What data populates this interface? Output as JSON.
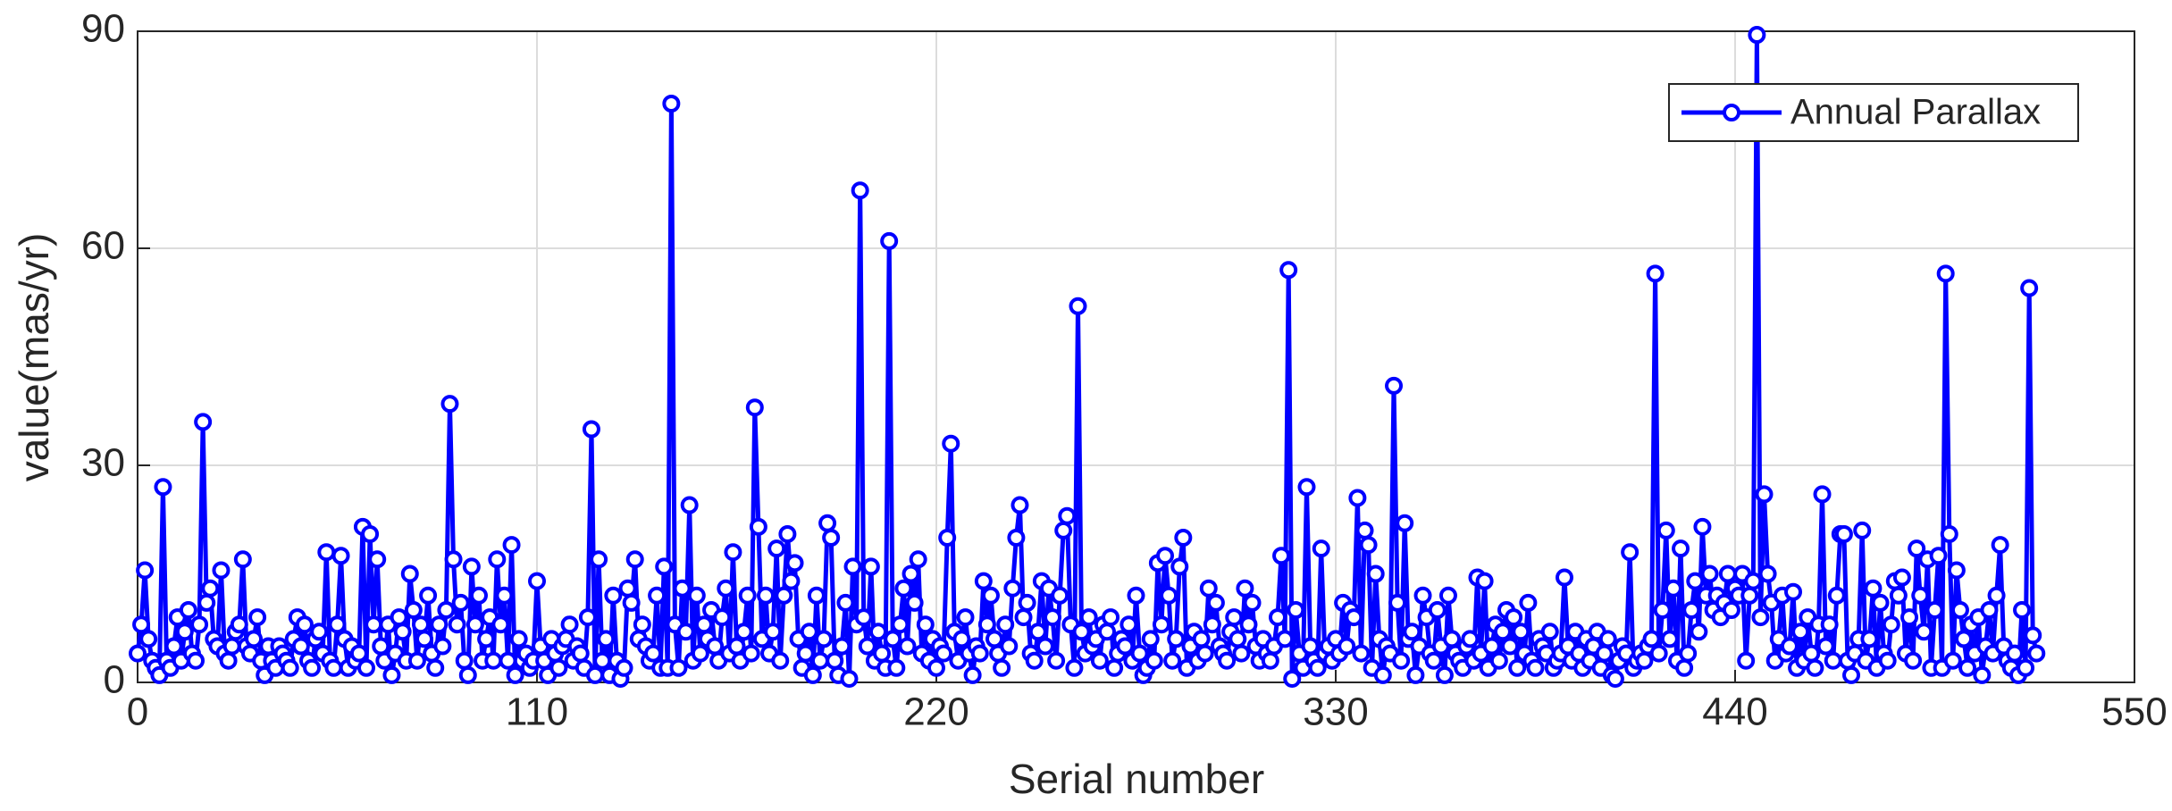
{
  "chart_data": {
    "type": "line",
    "xlabel": "Serial number",
    "ylabel": "value(mas/yr)",
    "xlim": [
      0,
      550
    ],
    "xticks": [
      0,
      110,
      220,
      330,
      440,
      550
    ],
    "ylim": [
      0,
      90
    ],
    "yticks": [
      0,
      30,
      60,
      90
    ],
    "grid": true,
    "legend": "upper right",
    "x": [
      0,
      1,
      2,
      3,
      4,
      5,
      6,
      7,
      8,
      9,
      10,
      11,
      12,
      13,
      14,
      15,
      16,
      17,
      18,
      19,
      20,
      21,
      22,
      23,
      24,
      25,
      26,
      27,
      28,
      29,
      30,
      31,
      32,
      33,
      34,
      35,
      36,
      37,
      38,
      39,
      40,
      41,
      42,
      43,
      44,
      45,
      46,
      47,
      48,
      49,
      50,
      51,
      52,
      53,
      54,
      55,
      56,
      57,
      58,
      59,
      60,
      61,
      62,
      63,
      64,
      65,
      66,
      67,
      68,
      69,
      70,
      71,
      72,
      73,
      74,
      75,
      76,
      77,
      78,
      79,
      80,
      81,
      82,
      83,
      84,
      85,
      86,
      87,
      88,
      89,
      90,
      91,
      92,
      93,
      94,
      95,
      96,
      97,
      98,
      99,
      100,
      101,
      102,
      103,
      104,
      105,
      106,
      107,
      108,
      109,
      110,
      111,
      112,
      113,
      114,
      115,
      116,
      117,
      118,
      119,
      120,
      121,
      122,
      123,
      124,
      125,
      126,
      127,
      128,
      129,
      130,
      131,
      132,
      133,
      134,
      135,
      136,
      137,
      138,
      139,
      140,
      141,
      142,
      143,
      144,
      145,
      146,
      147,
      148,
      149,
      150,
      151,
      152,
      153,
      154,
      155,
      156,
      157,
      158,
      159,
      160,
      161,
      162,
      163,
      164,
      165,
      166,
      167,
      168,
      169,
      170,
      171,
      172,
      173,
      174,
      175,
      176,
      177,
      178,
      179,
      180,
      181,
      182,
      183,
      184,
      185,
      186,
      187,
      188,
      189,
      190,
      191,
      192,
      193,
      194,
      195,
      196,
      197,
      198,
      199,
      200,
      201,
      202,
      203,
      204,
      205,
      206,
      207,
      208,
      209,
      210,
      211,
      212,
      213,
      214,
      215,
      216,
      217,
      218,
      219,
      220,
      221,
      222,
      223,
      224,
      225,
      226,
      227,
      228,
      229,
      230,
      231,
      232,
      233,
      234,
      235,
      236,
      237,
      238,
      239,
      240,
      241,
      242,
      243,
      244,
      245,
      246,
      247,
      248,
      249,
      250,
      251,
      252,
      253,
      254,
      255,
      256,
      257,
      258,
      259,
      260,
      261,
      262,
      263,
      264,
      265,
      266,
      267,
      268,
      269,
      270,
      271,
      272,
      273,
      274,
      275,
      276,
      277,
      278,
      279,
      280,
      281,
      282,
      283,
      284,
      285,
      286,
      287,
      288,
      289,
      290,
      291,
      292,
      293,
      294,
      295,
      296,
      297,
      298,
      299,
      300,
      301,
      302,
      303,
      304,
      305,
      306,
      307,
      308,
      309,
      310,
      311,
      312,
      313,
      314,
      315,
      316,
      317,
      318,
      319,
      320,
      321,
      322,
      323,
      324,
      325,
      326,
      327,
      328,
      329,
      330,
      331,
      332,
      333,
      334,
      335,
      336,
      337,
      338,
      339,
      340,
      341,
      342,
      343,
      344,
      345,
      346,
      347,
      348,
      349,
      350,
      351,
      352,
      353,
      354,
      355,
      356,
      357,
      358,
      359,
      360,
      361,
      362,
      363,
      364,
      365,
      366,
      367,
      368,
      369,
      370,
      371,
      372,
      373,
      374,
      375,
      376,
      377,
      378,
      379,
      380,
      381,
      382,
      383,
      384,
      385,
      386,
      387,
      388,
      389,
      390,
      391,
      392,
      393,
      394,
      395,
      396,
      397,
      398,
      399,
      400,
      401,
      402,
      403,
      404,
      405,
      406,
      407,
      408,
      409,
      410,
      411,
      412,
      413,
      414,
      415,
      416,
      417,
      418,
      419,
      420,
      421,
      422,
      423,
      424,
      425,
      426,
      427,
      428,
      429,
      430,
      431,
      432,
      433,
      434,
      435,
      436,
      437,
      438,
      439,
      440,
      441,
      442,
      443,
      444,
      445,
      446,
      447,
      448,
      449,
      450,
      451,
      452,
      453,
      454,
      455,
      456,
      457,
      458,
      459,
      460,
      461,
      462,
      463,
      464,
      465,
      466,
      467,
      468,
      469,
      470,
      471,
      472,
      473,
      474,
      475,
      476,
      477,
      478,
      479,
      480,
      481,
      482,
      483,
      484,
      485,
      486,
      487,
      488,
      489,
      490,
      491,
      492,
      493,
      494,
      495,
      496,
      497,
      498,
      499,
      500,
      501,
      502,
      503,
      504,
      505,
      506,
      507,
      508,
      509,
      510,
      511,
      512,
      513,
      514,
      515,
      516,
      517,
      518,
      519,
      520,
      521,
      522,
      523
    ],
    "series": [
      {
        "name": "Annual Parallax",
        "color": "#0000ff",
        "values": [
          4,
          8,
          15.5,
          6,
          3,
          2,
          1,
          27,
          3,
          2,
          5,
          9,
          3,
          7,
          10,
          4,
          3,
          8,
          36,
          11,
          13,
          6,
          5,
          15.5,
          4,
          3,
          5,
          7,
          8,
          17,
          5,
          4,
          6,
          9,
          3,
          1,
          5,
          3,
          2,
          5,
          4,
          3,
          2,
          6,
          9,
          5,
          8,
          3,
          2,
          6,
          7,
          4,
          18,
          3,
          2,
          8,
          17.5,
          6,
          2,
          5,
          3,
          4,
          21.5,
          2,
          20.5,
          8,
          17,
          5,
          3,
          8,
          1,
          4,
          9,
          7,
          3,
          15,
          10,
          3,
          8,
          6,
          12,
          4,
          2,
          8,
          5,
          10,
          38.5,
          17,
          8,
          11,
          3,
          1,
          16,
          8,
          12,
          3,
          6,
          9,
          3,
          17,
          8,
          12,
          3,
          19,
          1,
          6,
          3,
          4,
          2,
          3,
          14,
          5,
          3,
          1,
          6,
          4,
          2,
          5,
          6,
          8,
          3,
          5,
          4,
          2,
          9,
          35,
          1,
          17,
          3,
          6,
          1,
          12,
          3,
          0.5,
          2,
          13,
          11,
          17,
          6,
          8,
          5,
          3,
          4,
          12,
          2,
          16,
          2,
          80,
          8,
          2,
          13,
          7,
          24.5,
          3,
          12,
          4,
          8,
          6,
          10,
          5,
          3,
          9,
          13,
          4,
          18,
          5,
          3,
          7,
          12,
          4,
          38,
          21.5,
          6,
          12,
          4,
          7,
          18.5,
          3,
          12,
          20.5,
          14,
          16.5,
          6,
          2,
          4,
          7,
          1,
          12,
          3,
          6,
          22,
          20,
          3,
          1,
          5,
          11,
          0.5,
          16,
          8,
          68,
          9,
          5,
          16,
          3,
          7,
          4,
          2,
          61,
          6,
          2,
          8,
          13,
          5,
          15,
          11,
          17,
          4,
          8,
          3,
          6,
          2,
          5,
          4,
          20,
          33,
          7,
          3,
          6,
          9,
          4,
          1,
          5,
          4,
          14,
          8,
          12,
          6,
          4,
          2,
          8,
          5,
          13,
          20,
          24.5,
          9,
          11,
          4,
          3,
          7,
          14,
          5,
          13,
          9,
          3,
          12,
          21,
          23,
          8,
          2,
          52,
          7,
          4,
          9,
          5,
          6,
          3,
          8,
          7,
          9,
          2,
          4,
          6,
          5,
          8,
          3,
          12,
          4,
          1,
          2,
          6,
          3,
          16.5,
          8,
          17.5,
          12,
          3,
          6,
          16,
          20,
          2,
          5,
          7,
          3,
          6,
          4,
          13,
          8,
          11,
          5,
          4,
          3,
          7,
          9,
          6,
          4,
          13,
          8,
          11,
          5,
          3,
          6,
          4,
          3,
          5,
          9,
          17.5,
          6,
          57,
          0.5,
          10,
          4,
          2,
          27,
          5,
          3,
          2,
          18.5,
          4,
          5,
          3,
          6,
          4,
          11,
          5,
          10,
          9,
          25.5,
          4,
          21,
          19,
          2,
          15,
          6,
          1,
          5,
          4,
          41,
          11,
          3,
          22,
          6,
          7,
          1,
          5,
          12,
          9,
          4,
          3,
          10,
          5,
          1,
          12,
          6,
          4,
          3,
          2,
          5,
          6,
          3,
          14.5,
          4,
          14,
          2,
          5,
          8,
          3,
          7,
          10,
          5,
          9,
          2,
          7,
          4,
          11,
          3,
          2,
          6,
          5,
          4,
          7,
          2,
          3,
          4,
          14.5,
          5,
          3,
          7,
          4,
          2,
          6,
          3,
          5,
          7,
          2,
          4,
          6,
          1,
          0.5,
          3,
          5,
          4,
          18,
          2,
          3,
          4,
          3,
          5,
          6,
          56.5,
          4,
          10,
          21,
          6,
          13,
          3,
          18.5,
          2,
          4,
          10,
          14,
          7,
          21.5,
          12,
          15,
          10,
          12,
          9,
          11,
          15,
          10,
          13,
          12,
          15,
          3,
          12,
          14,
          89.5,
          9,
          26,
          15,
          11,
          3,
          6,
          12,
          4,
          5,
          12.5,
          2,
          7,
          3,
          9,
          4,
          2,
          8,
          26,
          5,
          8,
          3,
          12,
          20.5,
          20.5,
          3,
          1,
          4,
          6,
          21,
          3,
          6,
          13,
          2,
          11,
          4,
          3,
          8,
          14,
          12,
          14.5,
          4,
          9,
          3,
          18.5,
          12,
          7,
          17,
          2,
          10,
          17.5,
          2,
          56.5,
          20.5,
          3,
          15.5,
          10,
          6,
          2,
          8,
          4,
          9,
          1,
          5,
          10,
          4,
          12,
          19,
          5,
          3,
          2,
          4,
          1,
          10,
          2,
          54.5,
          6.5,
          4
        ]
      }
    ]
  }
}
